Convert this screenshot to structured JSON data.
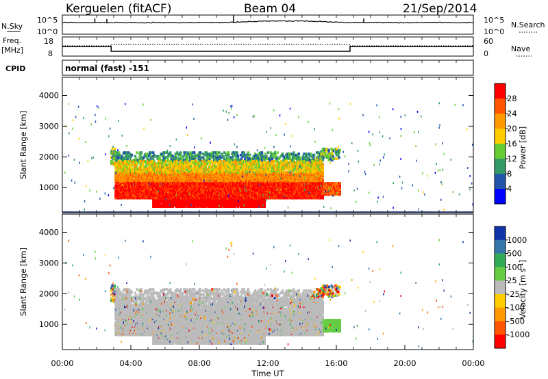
{
  "header": {
    "station": "Kerguelen (fitACF)",
    "beam": "Beam 04",
    "date": "21/Sep/2014"
  },
  "sky_panel": {
    "left_label": "N.Sky",
    "right_label": "N.Search",
    "left_ticks": [
      "10^5",
      "10^0"
    ],
    "right_ticks": [
      "10^5",
      "10^0"
    ]
  },
  "freq_panel": {
    "left_label_1": "Freq.",
    "left_label_2": "[MHz]",
    "right_label": "Nave",
    "left_ticks": [
      "18",
      "8"
    ],
    "right_ticks": [
      "60",
      "0"
    ]
  },
  "cpid": {
    "label": "CPID",
    "program": "normal (fast) -151"
  },
  "chart_data": [
    {
      "type": "heatmap",
      "name": "power",
      "ylabel": "Slant Range [km]",
      "ylim": [
        180,
        4590
      ],
      "yticks": [
        1000,
        2000,
        3000,
        4000
      ],
      "xlim": [
        0,
        24
      ],
      "colorbar": {
        "label": "Power [dB]",
        "ticks": [
          "28",
          "24",
          "20",
          "16",
          "12",
          "8",
          "4"
        ],
        "colors": [
          "#ff0000",
          "#ff5500",
          "#ff9900",
          "#ffcc00",
          "#66cc33",
          "#339966",
          "#2255aa",
          "#0000ff"
        ]
      }
    },
    {
      "type": "heatmap",
      "name": "velocity",
      "ylabel": "Slant Range [km]",
      "ylim": [
        180,
        4590
      ],
      "yticks": [
        1000,
        2000,
        3000,
        4000
      ],
      "xlim": [
        0,
        24
      ],
      "colorbar": {
        "label": "Velocity [m s",
        "label_sup": "-1",
        "label_end": "]",
        "ticks": [
          "1000",
          "500",
          "100",
          "25",
          "-25",
          "-100",
          "-500",
          "-1000"
        ],
        "colors": [
          "#1133aa",
          "#3377aa",
          "#33aa55",
          "#66cc44",
          "#bbbbbb",
          "#ffcc00",
          "#ff9900",
          "#ff5500",
          "#ff0000"
        ]
      }
    }
  ],
  "x_axis": {
    "ticks": [
      "00:00",
      "04:00",
      "08:00",
      "12:00",
      "16:00",
      "20:00",
      "00:00"
    ],
    "label": "Time UT"
  }
}
